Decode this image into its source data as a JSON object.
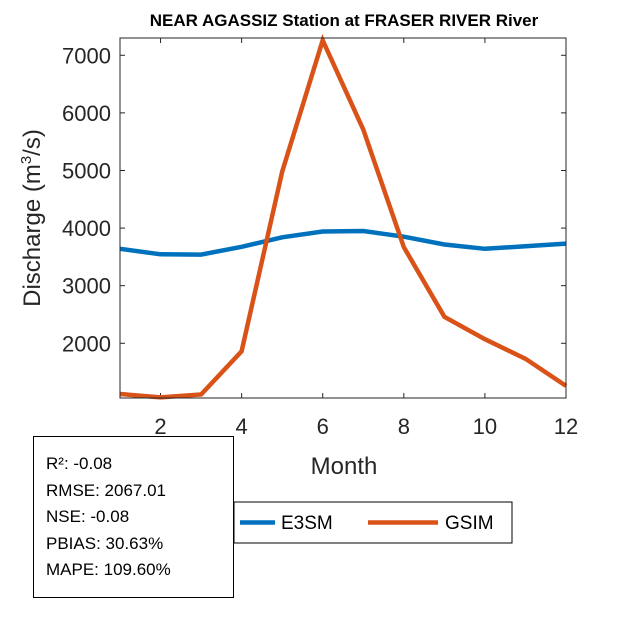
{
  "chart_data": {
    "type": "line",
    "title": "NEAR AGASSIZ  Station at  FRASER RIVER  River",
    "xlabel": "Month",
    "ylabel_prefix": "Discharge (m",
    "ylabel_sup": "3",
    "ylabel_suffix": "/s)",
    "xlim": [
      1,
      12
    ],
    "ylim": [
      1050,
      7300
    ],
    "xticks": [
      2,
      4,
      6,
      8,
      10,
      12
    ],
    "yticks": [
      2000,
      3000,
      4000,
      5000,
      6000,
      7000
    ],
    "x": [
      1,
      2,
      3,
      4,
      5,
      6,
      7,
      8,
      9,
      10,
      11,
      12
    ],
    "series": [
      {
        "name": "E3SM",
        "color": "#0072BD",
        "values": [
          3640,
          3545,
          3540,
          3675,
          3840,
          3940,
          3950,
          3850,
          3715,
          3640,
          3685,
          3730
        ]
      },
      {
        "name": "GSIM",
        "color": "#D95319",
        "values": [
          1120,
          1060,
          1110,
          1860,
          4980,
          7260,
          5710,
          3670,
          2460,
          2070,
          1730,
          1260
        ]
      }
    ],
    "legend_location": "bottom-right",
    "grid": false
  },
  "stats": {
    "r2": "R²: -0.08",
    "rmse": "RMSE: 2067.01",
    "nse": "NSE: -0.08",
    "pbias": "PBIAS: 30.63%",
    "mape": "MAPE: 109.60%"
  }
}
